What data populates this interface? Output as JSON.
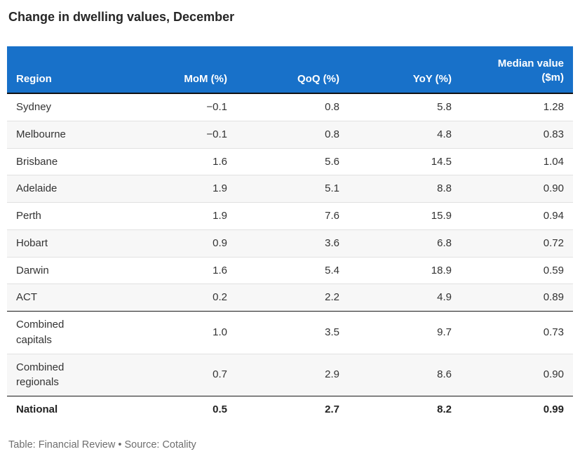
{
  "title": "Change in dwelling values, December",
  "footer": "Table: Financial Review • Source: Cotality",
  "header": {
    "region": "Region",
    "mom": "MoM (%)",
    "qoq": "QoQ (%)",
    "yoy": "YoY (%)",
    "median": "Median value\n($m)"
  },
  "rows": [
    {
      "region": "Sydney",
      "mom": "−0.1",
      "qoq": "0.8",
      "yoy": "5.8",
      "median": "1.28",
      "bold": false,
      "section_break": false
    },
    {
      "region": "Melbourne",
      "mom": "−0.1",
      "qoq": "0.8",
      "yoy": "4.8",
      "median": "0.83",
      "bold": false,
      "section_break": false
    },
    {
      "region": "Brisbane",
      "mom": "1.6",
      "qoq": "5.6",
      "yoy": "14.5",
      "median": "1.04",
      "bold": false,
      "section_break": false
    },
    {
      "region": "Adelaide",
      "mom": "1.9",
      "qoq": "5.1",
      "yoy": "8.8",
      "median": "0.90",
      "bold": false,
      "section_break": false
    },
    {
      "region": "Perth",
      "mom": "1.9",
      "qoq": "7.6",
      "yoy": "15.9",
      "median": "0.94",
      "bold": false,
      "section_break": false
    },
    {
      "region": "Hobart",
      "mom": "0.9",
      "qoq": "3.6",
      "yoy": "6.8",
      "median": "0.72",
      "bold": false,
      "section_break": false
    },
    {
      "region": "Darwin",
      "mom": "1.6",
      "qoq": "5.4",
      "yoy": "18.9",
      "median": "0.59",
      "bold": false,
      "section_break": false
    },
    {
      "region": "ACT",
      "mom": "0.2",
      "qoq": "2.2",
      "yoy": "4.9",
      "median": "0.89",
      "bold": false,
      "section_break": false
    },
    {
      "region": "Combined\ncapitals",
      "mom": "1.0",
      "qoq": "3.5",
      "yoy": "9.7",
      "median": "0.73",
      "bold": false,
      "section_break": true
    },
    {
      "region": "Combined\nregionals",
      "mom": "0.7",
      "qoq": "2.9",
      "yoy": "8.6",
      "median": "0.90",
      "bold": false,
      "section_break": false
    },
    {
      "region": "National",
      "mom": "0.5",
      "qoq": "2.7",
      "yoy": "8.2",
      "median": "0.99",
      "bold": true,
      "section_break": true
    }
  ],
  "colors": {
    "header_bg": "#1871c9",
    "header_text": "#ffffff",
    "stripe": "#f7f7f7",
    "row_divider": "#e1e1e1",
    "section_border": "#1a1a1a",
    "body_text": "#333333",
    "title_text": "#262626",
    "footer_text": "#6e6e6e"
  },
  "chart_data": {
    "type": "table",
    "title": "Change in dwelling values, December",
    "columns": [
      "Region",
      "MoM (%)",
      "QoQ (%)",
      "YoY (%)",
      "Median value ($m)"
    ],
    "rows": [
      [
        "Sydney",
        -0.1,
        0.8,
        5.8,
        1.28
      ],
      [
        "Melbourne",
        -0.1,
        0.8,
        4.8,
        0.83
      ],
      [
        "Brisbane",
        1.6,
        5.6,
        14.5,
        1.04
      ],
      [
        "Adelaide",
        1.9,
        5.1,
        8.8,
        0.9
      ],
      [
        "Perth",
        1.9,
        7.6,
        15.9,
        0.94
      ],
      [
        "Hobart",
        0.9,
        3.6,
        6.8,
        0.72
      ],
      [
        "Darwin",
        1.6,
        5.4,
        18.9,
        0.59
      ],
      [
        "ACT",
        0.2,
        2.2,
        4.9,
        0.89
      ],
      [
        "Combined capitals",
        1.0,
        3.5,
        9.7,
        0.73
      ],
      [
        "Combined regionals",
        0.7,
        2.9,
        8.6,
        0.9
      ],
      [
        "National",
        0.5,
        2.7,
        8.2,
        0.99
      ]
    ],
    "source": "Table: Financial Review • Source: Cotality"
  }
}
